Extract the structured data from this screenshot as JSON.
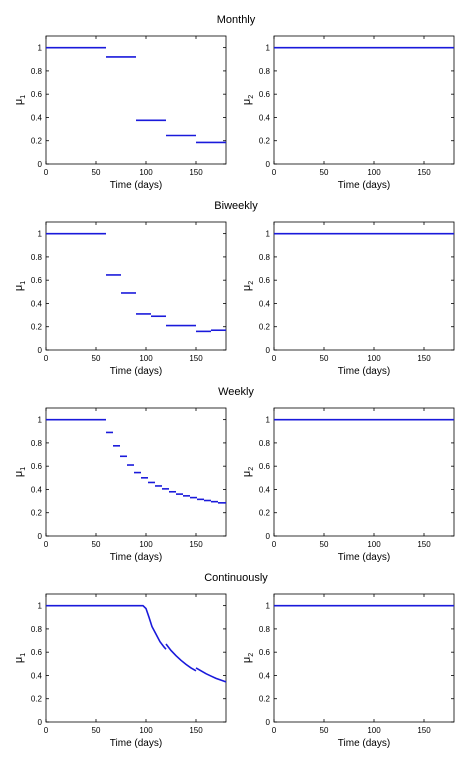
{
  "rows": [
    {
      "title": "Monthly"
    },
    {
      "title": "Biweekly"
    },
    {
      "title": "Weekly"
    },
    {
      "title": "Continuously"
    }
  ],
  "chart_data": [
    {
      "type": "line",
      "group": "Monthly",
      "xlabel": "Time (days)",
      "ylabel": "μ",
      "ylabel_sub": "1",
      "xlim": [
        0,
        180
      ],
      "ylim": [
        0,
        1.1
      ],
      "xticks": [
        0,
        50,
        100,
        150
      ],
      "yticks": [
        0,
        0.2,
        0.4,
        0.6,
        0.8,
        1
      ],
      "color": "#1a1adb",
      "series": [
        {
          "x": [
            0,
            60
          ],
          "y": [
            1,
            1
          ]
        },
        {
          "x": [
            60,
            90
          ],
          "y": [
            0.92,
            0.92
          ]
        },
        {
          "x": [
            90,
            120
          ],
          "y": [
            0.375,
            0.375
          ]
        },
        {
          "x": [
            120,
            150
          ],
          "y": [
            0.245,
            0.245
          ]
        },
        {
          "x": [
            150,
            180
          ],
          "y": [
            0.185,
            0.185
          ]
        }
      ]
    },
    {
      "type": "line",
      "group": "Monthly",
      "xlabel": "Time (days)",
      "ylabel": "μ",
      "ylabel_sub": "2",
      "xlim": [
        0,
        180
      ],
      "ylim": [
        0,
        1.1
      ],
      "xticks": [
        0,
        50,
        100,
        150
      ],
      "yticks": [
        0,
        0.2,
        0.4,
        0.6,
        0.8,
        1
      ],
      "color": "#1a1adb",
      "series": [
        {
          "x": [
            0,
            180
          ],
          "y": [
            1,
            1
          ]
        }
      ]
    },
    {
      "type": "line",
      "group": "Biweekly",
      "xlabel": "Time (days)",
      "ylabel": "μ",
      "ylabel_sub": "1",
      "xlim": [
        0,
        180
      ],
      "ylim": [
        0,
        1.1
      ],
      "xticks": [
        0,
        50,
        100,
        150
      ],
      "yticks": [
        0,
        0.2,
        0.4,
        0.6,
        0.8,
        1
      ],
      "color": "#1a1adb",
      "series": [
        {
          "x": [
            0,
            60
          ],
          "y": [
            1,
            1
          ]
        },
        {
          "x": [
            60,
            75
          ],
          "y": [
            0.645,
            0.645
          ]
        },
        {
          "x": [
            75,
            90
          ],
          "y": [
            0.49,
            0.49
          ]
        },
        {
          "x": [
            90,
            105
          ],
          "y": [
            0.31,
            0.31
          ]
        },
        {
          "x": [
            105,
            120
          ],
          "y": [
            0.29,
            0.29
          ]
        },
        {
          "x": [
            120,
            135
          ],
          "y": [
            0.21,
            0.21
          ]
        },
        {
          "x": [
            135,
            150
          ],
          "y": [
            0.21,
            0.21
          ]
        },
        {
          "x": [
            150,
            165
          ],
          "y": [
            0.16,
            0.16
          ]
        },
        {
          "x": [
            165,
            180
          ],
          "y": [
            0.17,
            0.17
          ]
        }
      ]
    },
    {
      "type": "line",
      "group": "Biweekly",
      "xlabel": "Time (days)",
      "ylabel": "μ",
      "ylabel_sub": "2",
      "xlim": [
        0,
        180
      ],
      "ylim": [
        0,
        1.1
      ],
      "xticks": [
        0,
        50,
        100,
        150
      ],
      "yticks": [
        0,
        0.2,
        0.4,
        0.6,
        0.8,
        1
      ],
      "color": "#1a1adb",
      "series": [
        {
          "x": [
            0,
            180
          ],
          "y": [
            1,
            1
          ]
        }
      ]
    },
    {
      "type": "line",
      "group": "Weekly",
      "xlabel": "Time (days)",
      "ylabel": "μ",
      "ylabel_sub": "1",
      "xlim": [
        0,
        180
      ],
      "ylim": [
        0,
        1.1
      ],
      "xticks": [
        0,
        50,
        100,
        150
      ],
      "yticks": [
        0,
        0.2,
        0.4,
        0.6,
        0.8,
        1
      ],
      "color": "#1a1adb",
      "series": [
        {
          "x": [
            0,
            60
          ],
          "y": [
            1,
            1
          ]
        },
        {
          "x": [
            60,
            67
          ],
          "y": [
            0.89,
            0.89
          ]
        },
        {
          "x": [
            67,
            74
          ],
          "y": [
            0.775,
            0.775
          ]
        },
        {
          "x": [
            74,
            81
          ],
          "y": [
            0.685,
            0.685
          ]
        },
        {
          "x": [
            81,
            88
          ],
          "y": [
            0.61,
            0.61
          ]
        },
        {
          "x": [
            88,
            95
          ],
          "y": [
            0.545,
            0.545
          ]
        },
        {
          "x": [
            95,
            102
          ],
          "y": [
            0.5,
            0.5
          ]
        },
        {
          "x": [
            102,
            109
          ],
          "y": [
            0.46,
            0.46
          ]
        },
        {
          "x": [
            109,
            116
          ],
          "y": [
            0.43,
            0.43
          ]
        },
        {
          "x": [
            116,
            123
          ],
          "y": [
            0.405,
            0.405
          ]
        },
        {
          "x": [
            123,
            130
          ],
          "y": [
            0.38,
            0.38
          ]
        },
        {
          "x": [
            130,
            137
          ],
          "y": [
            0.36,
            0.36
          ]
        },
        {
          "x": [
            137,
            144
          ],
          "y": [
            0.345,
            0.345
          ]
        },
        {
          "x": [
            144,
            151
          ],
          "y": [
            0.33,
            0.33
          ]
        },
        {
          "x": [
            151,
            158
          ],
          "y": [
            0.315,
            0.315
          ]
        },
        {
          "x": [
            158,
            165
          ],
          "y": [
            0.305,
            0.305
          ]
        },
        {
          "x": [
            165,
            172
          ],
          "y": [
            0.295,
            0.295
          ]
        },
        {
          "x": [
            172,
            180
          ],
          "y": [
            0.285,
            0.285
          ]
        }
      ]
    },
    {
      "type": "line",
      "group": "Weekly",
      "xlabel": "Time (days)",
      "ylabel": "μ",
      "ylabel_sub": "2",
      "xlim": [
        0,
        180
      ],
      "ylim": [
        0,
        1.1
      ],
      "xticks": [
        0,
        50,
        100,
        150
      ],
      "yticks": [
        0,
        0.2,
        0.4,
        0.6,
        0.8,
        1
      ],
      "color": "#1a1adb",
      "series": [
        {
          "x": [
            0,
            180
          ],
          "y": [
            1,
            1
          ]
        }
      ]
    },
    {
      "type": "line",
      "group": "Continuously",
      "xlabel": "Time (days)",
      "ylabel": "μ",
      "ylabel_sub": "1",
      "xlim": [
        0,
        180
      ],
      "ylim": [
        0,
        1.1
      ],
      "xticks": [
        0,
        50,
        100,
        150
      ],
      "yticks": [
        0,
        0.2,
        0.4,
        0.6,
        0.8,
        1
      ],
      "color": "#1a1adb",
      "series": [
        {
          "x": [
            0,
            97,
            100,
            103,
            106,
            110,
            114,
            118,
            120
          ],
          "y": [
            1,
            1,
            0.975,
            0.9,
            0.82,
            0.755,
            0.69,
            0.645,
            0.625
          ]
        },
        {
          "x": [
            120,
            125,
            130,
            135,
            140,
            145,
            150
          ],
          "y": [
            0.67,
            0.615,
            0.57,
            0.53,
            0.495,
            0.465,
            0.44
          ]
        },
        {
          "x": [
            150,
            155,
            160,
            165,
            170,
            175,
            180
          ],
          "y": [
            0.465,
            0.44,
            0.415,
            0.395,
            0.375,
            0.36,
            0.345
          ]
        }
      ]
    },
    {
      "type": "line",
      "group": "Continuously",
      "xlabel": "Time (days)",
      "ylabel": "μ",
      "ylabel_sub": "2",
      "xlim": [
        0,
        180
      ],
      "ylim": [
        0,
        1.1
      ],
      "xticks": [
        0,
        50,
        100,
        150
      ],
      "yticks": [
        0,
        0.2,
        0.4,
        0.6,
        0.8,
        1
      ],
      "color": "#1a1adb",
      "series": [
        {
          "x": [
            0,
            180
          ],
          "y": [
            1,
            1
          ]
        }
      ]
    }
  ]
}
